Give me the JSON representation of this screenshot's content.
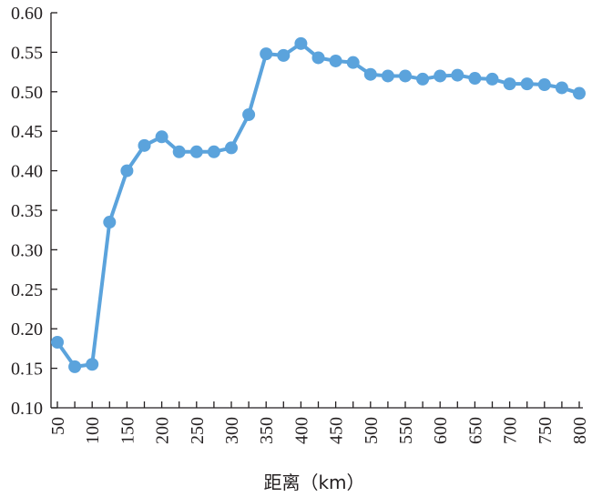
{
  "chart_data": {
    "type": "line",
    "title": "",
    "xlabel": "距离（km）",
    "ylabel": "",
    "xlim": [
      50,
      800
    ],
    "ylim": [
      0.1,
      0.6
    ],
    "grid": false,
    "legend": "none",
    "xticks": [
      "50",
      "100",
      "150",
      "200",
      "250",
      "300",
      "350",
      "400",
      "450",
      "500",
      "550",
      "600",
      "650",
      "700",
      "750",
      "800"
    ],
    "yticks": [
      "0.10",
      "0.15",
      "0.20",
      "0.25",
      "0.30",
      "0.35",
      "0.40",
      "0.45",
      "0.50",
      "0.55",
      "0.60"
    ],
    "color": "#5ba3dc",
    "series": [
      {
        "x": [
          50,
          75,
          100,
          125,
          150,
          175,
          200,
          225,
          250,
          275,
          300,
          325,
          350,
          375,
          400,
          425,
          450,
          475,
          500,
          525,
          550,
          575,
          600,
          625,
          650,
          675,
          700,
          725,
          750,
          775,
          800
        ],
        "values": [
          0.183,
          0.152,
          0.155,
          0.335,
          0.4,
          0.432,
          0.443,
          0.424,
          0.424,
          0.424,
          0.429,
          0.471,
          0.548,
          0.546,
          0.561,
          0.543,
          0.539,
          0.537,
          0.522,
          0.52,
          0.52,
          0.516,
          0.52,
          0.521,
          0.517,
          0.516,
          0.51,
          0.51,
          0.509,
          0.505,
          0.498
        ]
      }
    ]
  }
}
